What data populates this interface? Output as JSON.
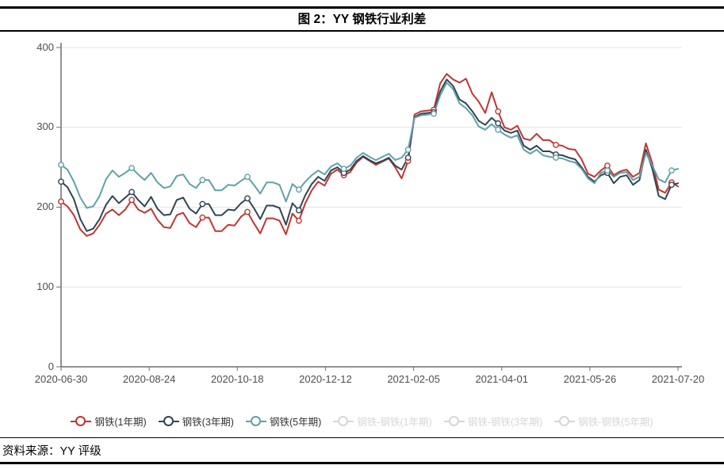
{
  "header": {
    "figure_title": "图 2：YY 钢铁行业利差"
  },
  "footer": {
    "source_label": "资料来源：YY 评级"
  },
  "colors": {
    "series_1y": "#c23531",
    "series_3y": "#2f4554",
    "series_5y": "#61a0a8",
    "disabled_legend": "#d6d6d6",
    "gridline": "#e3e3e3",
    "axis": "#6e6e6e"
  },
  "legend": {
    "items": [
      {
        "label": "钢铁(1年期)",
        "color": "#c23531",
        "enabled": true
      },
      {
        "label": "钢铁(3年期)",
        "color": "#2f4554",
        "enabled": true
      },
      {
        "label": "钢铁(5年期)",
        "color": "#61a0a8",
        "enabled": true
      },
      {
        "label": "钢铁-钢铁(1年期)",
        "color": "#d6d6d6",
        "enabled": false
      },
      {
        "label": "钢铁-钢铁(3年期)",
        "color": "#d6d6d6",
        "enabled": false
      },
      {
        "label": "钢铁-钢铁(5年期)",
        "color": "#d6d6d6",
        "enabled": false
      }
    ]
  },
  "chart_data": {
    "type": "line",
    "title": "图 2：YY 钢铁行业利差",
    "xlabel": "",
    "ylabel": "",
    "ylim": [
      0,
      400
    ],
    "y_ticks": [
      400,
      300,
      200,
      100,
      0
    ],
    "x_tick_labels": [
      "2020-06-30",
      "2020-08-24",
      "2020-10-18",
      "2020-12-12",
      "2021-02-05",
      "2021-04-01",
      "2021-05-26",
      "2021-07-20"
    ],
    "x_range": [
      "2020-06-30",
      "2021-07-20"
    ],
    "sample_interval_days": 4,
    "grid": true,
    "legend_position": "bottom",
    "marker_indices": [
      0,
      11,
      22,
      29,
      37,
      44,
      54,
      58,
      68,
      77,
      85,
      95
    ],
    "series": [
      {
        "name": "钢铁(1年期)",
        "color": "#c23531",
        "values": [
          207,
          201,
          190,
          172,
          164,
          167,
          178,
          192,
          197,
          190,
          197,
          209,
          197,
          193,
          198,
          184,
          175,
          174,
          190,
          193,
          180,
          175,
          187,
          187,
          170,
          170,
          178,
          177,
          188,
          194,
          180,
          167,
          186,
          186,
          183,
          166,
          192,
          183,
          205,
          221,
          232,
          227,
          242,
          247,
          240,
          244,
          256,
          263,
          258,
          253,
          257,
          261,
          250,
          236,
          258,
          316,
          320,
          321,
          322,
          355,
          367,
          360,
          356,
          361,
          342,
          332,
          318,
          344,
          320,
          300,
          297,
          302,
          286,
          284,
          292,
          284,
          284,
          278,
          277,
          273,
          272,
          260,
          242,
          238,
          246,
          252,
          240,
          245,
          247,
          238,
          243,
          280,
          255,
          222,
          218,
          231,
          226
        ]
      },
      {
        "name": "钢铁(3年期)",
        "color": "#2f4554",
        "values": [
          232,
          225,
          210,
          185,
          170,
          173,
          185,
          203,
          214,
          205,
          212,
          219,
          209,
          201,
          213,
          198,
          190,
          191,
          209,
          212,
          198,
          192,
          204,
          204,
          190,
          190,
          197,
          196,
          205,
          211,
          199,
          185,
          202,
          202,
          199,
          178,
          205,
          196,
          215,
          229,
          238,
          233,
          246,
          250,
          243,
          247,
          258,
          264,
          259,
          255,
          258,
          262,
          252,
          247,
          262,
          313,
          317,
          318,
          319,
          345,
          360,
          352,
          335,
          330,
          320,
          308,
          303,
          312,
          305,
          296,
          293,
          296,
          277,
          272,
          277,
          270,
          270,
          266,
          265,
          262,
          260,
          250,
          238,
          232,
          240,
          243,
          230,
          238,
          240,
          228,
          234,
          272,
          248,
          214,
          210,
          228,
          230
        ]
      },
      {
        "name": "钢铁(5年期)",
        "color": "#61a0a8",
        "values": [
          253,
          247,
          232,
          212,
          199,
          201,
          214,
          235,
          246,
          238,
          243,
          249,
          241,
          234,
          243,
          231,
          224,
          226,
          239,
          241,
          229,
          224,
          234,
          234,
          221,
          221,
          228,
          227,
          233,
          238,
          228,
          217,
          231,
          231,
          228,
          207,
          229,
          222,
          232,
          240,
          246,
          241,
          251,
          255,
          248,
          252,
          262,
          268,
          263,
          259,
          263,
          267,
          259,
          262,
          272,
          312,
          315,
          316,
          317,
          340,
          356,
          348,
          330,
          324,
          315,
          301,
          297,
          304,
          297,
          291,
          287,
          290,
          272,
          267,
          272,
          265,
          263,
          262,
          261,
          258,
          256,
          248,
          236,
          230,
          243,
          246,
          238,
          243,
          244,
          234,
          238,
          268,
          252,
          235,
          231,
          246,
          248
        ]
      }
    ]
  }
}
